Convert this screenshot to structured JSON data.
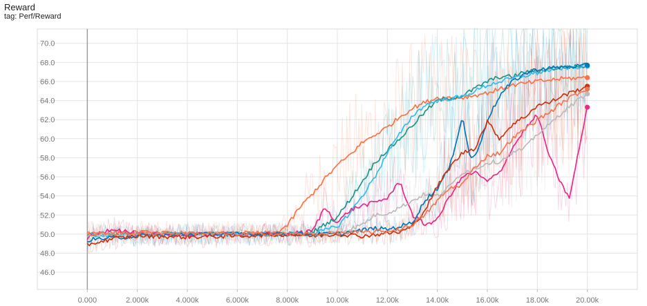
{
  "header": {
    "title": "Reward",
    "subtitle": "tag: Perf/Reward"
  },
  "chart_data": {
    "type": "line",
    "title": "Reward",
    "subtitle": "tag: Perf/Reward",
    "xlabel": "",
    "ylabel": "",
    "xlim": [
      -2000,
      22000
    ],
    "ylim": [
      44.2,
      71.5
    ],
    "xticks": [
      0,
      2000,
      4000,
      6000,
      8000,
      10000,
      12000,
      14000,
      16000,
      18000,
      20000
    ],
    "xtick_labels": [
      "0.000",
      "2.000k",
      "4.000k",
      "6.000k",
      "8.000k",
      "10.00k",
      "12.00k",
      "14.00k",
      "16.00k",
      "18.00k",
      "20.00k"
    ],
    "yticks": [
      46,
      48,
      50,
      52,
      54,
      56,
      58,
      60,
      62,
      64,
      66,
      68,
      70
    ],
    "ytick_labels": [
      "46.0",
      "48.0",
      "50.0",
      "52.0",
      "54.0",
      "56.0",
      "58.0",
      "60.0",
      "62.0",
      "64.0",
      "66.0",
      "68.0",
      "70.0"
    ],
    "grid": true,
    "legend": "none",
    "series": [
      {
        "color": "#ff7043",
        "x": [
          0,
          2000,
          4000,
          6000,
          7500,
          8000,
          8500,
          9000,
          9500,
          10000,
          10500,
          11000,
          11500,
          12000,
          12500,
          13000,
          13500,
          14000,
          15000,
          16000,
          17000,
          18000,
          19000,
          20000
        ],
        "y": [
          50.1,
          50.2,
          50.0,
          50.1,
          50.1,
          50.9,
          52.8,
          54.2,
          55.8,
          57.2,
          58.3,
          59.6,
          60.4,
          61.2,
          62.3,
          63.2,
          63.8,
          64.3,
          64.3,
          64.8,
          65.6,
          66.0,
          66.3,
          66.4
        ]
      },
      {
        "color": "#229487",
        "x": [
          0,
          2000,
          4000,
          6000,
          8000,
          9000,
          10000,
          10500,
          11000,
          11500,
          12000,
          12500,
          13000,
          13500,
          14000,
          15000,
          16000,
          16500,
          17000,
          17500,
          18000,
          18500,
          19000,
          20000
        ],
        "y": [
          50.0,
          50.0,
          50.0,
          50.0,
          50.0,
          50.2,
          51.8,
          53.6,
          55.5,
          57.5,
          58.8,
          60.0,
          61.4,
          62.8,
          64.0,
          64.5,
          66.0,
          66.5,
          66.5,
          67.0,
          67.1,
          67.3,
          67.5,
          67.6
        ]
      },
      {
        "color": "#33bbee",
        "x": [
          0,
          2000,
          4000,
          6000,
          8000,
          9000,
          10000,
          10500,
          11000,
          11500,
          12000,
          12500,
          13000,
          13500,
          14000,
          15000,
          16000,
          16500,
          17000,
          17500,
          18000,
          18500,
          19000,
          20000
        ],
        "y": [
          49.9,
          49.9,
          50.0,
          50.0,
          50.0,
          50.0,
          50.8,
          52.2,
          54.0,
          56.0,
          58.5,
          60.5,
          62.4,
          63.5,
          64.0,
          64.4,
          65.6,
          66.0,
          66.3,
          66.6,
          66.9,
          67.2,
          67.4,
          67.6
        ]
      },
      {
        "color": "#e7298a",
        "x": [
          0,
          1000,
          2000,
          4000,
          6000,
          8000,
          9000,
          9500,
          10000,
          10500,
          11000,
          11500,
          12000,
          12500,
          13000,
          13500,
          14000,
          14500,
          15000,
          15500,
          16000,
          16500,
          17000,
          17500,
          18000,
          18500,
          19000,
          19300,
          19600,
          20000
        ],
        "y": [
          49.6,
          50.6,
          50.0,
          49.9,
          50.0,
          50.0,
          50.3,
          52.8,
          51.2,
          52.5,
          53.0,
          53.3,
          53.8,
          55.5,
          52.0,
          51.0,
          51.5,
          54.0,
          56.0,
          56.5,
          55.5,
          56.5,
          59.0,
          61.0,
          62.5,
          58.0,
          55.0,
          53.8,
          58.0,
          63.3
        ]
      },
      {
        "color": "#bbbbbb",
        "x": [
          0,
          2000,
          4000,
          6000,
          8000,
          9000,
          10000,
          10500,
          11000,
          11500,
          12000,
          12500,
          13000,
          13500,
          14000,
          14500,
          15000,
          15500,
          16000,
          16500,
          17000,
          17500,
          18000,
          18500,
          19000,
          19500,
          20000
        ],
        "y": [
          49.9,
          50.0,
          50.0,
          50.0,
          50.0,
          50.0,
          50.2,
          50.5,
          51.0,
          52.0,
          52.2,
          52.8,
          53.5,
          54.2,
          54.0,
          55.0,
          56.5,
          56.8,
          57.5,
          57.6,
          58.5,
          59.0,
          60.5,
          61.5,
          62.8,
          63.8,
          64.7
        ]
      },
      {
        "color": "#0077bb",
        "x": [
          0,
          2000,
          4000,
          6000,
          8000,
          9000,
          10000,
          10500,
          11000,
          11500,
          12000,
          12500,
          13000,
          13500,
          14000,
          14500,
          15000,
          15300,
          15600,
          16000,
          16500,
          17000,
          17500,
          18000,
          18500,
          19000,
          20000
        ],
        "y": [
          49.4,
          49.8,
          50.0,
          50.0,
          50.0,
          50.0,
          50.0,
          50.2,
          50.4,
          50.6,
          50.5,
          50.8,
          51.2,
          53.5,
          54.8,
          57.0,
          62.4,
          58.0,
          58.5,
          62.0,
          64.5,
          66.0,
          66.8,
          67.3,
          67.4,
          67.5,
          67.7
        ]
      },
      {
        "color": "#cc3311",
        "x": [
          0,
          1000,
          2000,
          4000,
          6000,
          8000,
          9000,
          10000,
          11000,
          12000,
          12500,
          13000,
          13500,
          14000,
          14500,
          15000,
          15500,
          16000,
          16500,
          17000,
          17500,
          18000,
          18500,
          19000,
          20000
        ],
        "y": [
          48.9,
          49.5,
          49.8,
          49.7,
          49.8,
          50.0,
          49.8,
          50.0,
          49.8,
          50.1,
          50.2,
          50.8,
          52.5,
          55.0,
          57.0,
          58.5,
          59.0,
          61.8,
          60.0,
          61.5,
          62.3,
          63.5,
          63.8,
          64.5,
          65.5
        ]
      },
      {
        "color": "#ee7755",
        "x": [
          0,
          2000,
          4000,
          6000,
          8000,
          9000,
          10000,
          11000,
          12000,
          12500,
          13000,
          13500,
          14000,
          14500,
          15000,
          15500,
          16000,
          16500,
          17000,
          17500,
          18000,
          18500,
          19000,
          19500,
          20000
        ],
        "y": [
          50.0,
          50.1,
          50.1,
          50.0,
          50.0,
          50.0,
          50.1,
          50.2,
          50.3,
          50.5,
          51.0,
          52.0,
          53.5,
          54.8,
          55.2,
          57.0,
          58.2,
          58.5,
          60.0,
          61.0,
          62.0,
          62.8,
          63.8,
          64.6,
          65.2
        ]
      }
    ]
  }
}
